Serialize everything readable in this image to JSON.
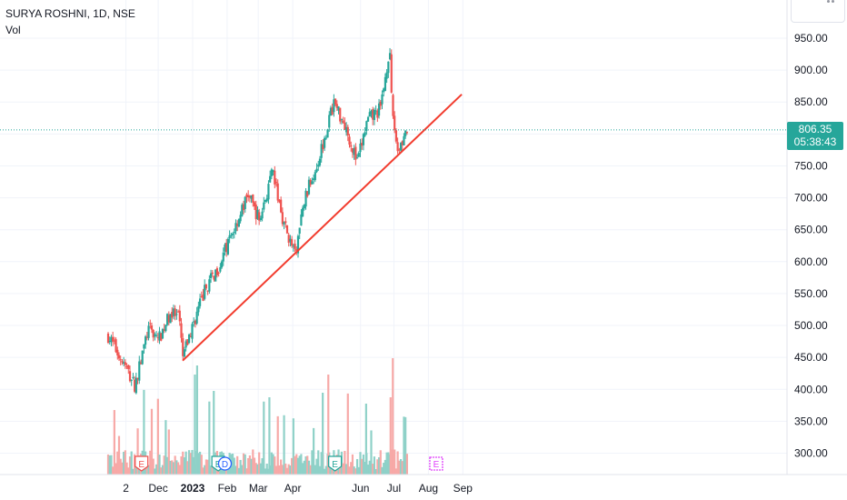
{
  "header": {
    "symbol": "SURYA ROSHNI, 1D, NSE",
    "indicator": "Vol"
  },
  "last_price": {
    "value": "806.35",
    "countdown": "05:38:43",
    "color": "#26a69a"
  },
  "colors": {
    "up": "#26a69a",
    "down": "#ef5350",
    "up_vol": "#8fd1c8",
    "down_vol": "#f7a9a7",
    "trendline": "#f23c2e",
    "grid": "#f0f3fa"
  },
  "chart_data": {
    "type": "candlestick",
    "y_axis": {
      "ticks": [
        950,
        900,
        850,
        800,
        750,
        700,
        650,
        600,
        550,
        500,
        450,
        400,
        350,
        300
      ],
      "labels": [
        "950.00",
        "900.00",
        "850.00",
        "800.00",
        "750.00",
        "700.00",
        "650.00",
        "600.00",
        "550.00",
        "500.00",
        "450.00",
        "400.00",
        "350.00",
        "300.00"
      ]
    },
    "x_axis": {
      "labels": [
        "2",
        "Dec",
        "2023",
        "Feb",
        "Mar",
        "Apr",
        "Jun",
        "Jul",
        "Aug",
        "Sep"
      ],
      "bold": [
        false,
        false,
        true,
        false,
        false,
        false,
        false,
        false,
        false,
        false
      ]
    },
    "trendline": {
      "from": {
        "date": "2022-12-23",
        "price": 445
      },
      "to": {
        "date": "2023-08-31",
        "price": 862
      }
    },
    "price_path": [
      [
        "2022-10-17",
        484
      ],
      [
        "2022-10-31",
        440
      ],
      [
        "2022-11-10",
        405
      ],
      [
        "2022-11-22",
        495
      ],
      [
        "2022-12-02",
        480
      ],
      [
        "2022-12-12",
        520
      ],
      [
        "2022-12-20",
        510
      ],
      [
        "2022-12-23",
        450
      ],
      [
        "2023-01-03",
        510
      ],
      [
        "2023-01-12",
        555
      ],
      [
        "2023-01-25",
        595
      ],
      [
        "2023-02-08",
        655
      ],
      [
        "2023-02-20",
        705
      ],
      [
        "2023-03-02",
        665
      ],
      [
        "2023-03-14",
        740
      ],
      [
        "2023-03-24",
        660
      ],
      [
        "2023-04-03",
        610
      ],
      [
        "2023-04-12",
        700
      ],
      [
        "2023-04-24",
        760
      ],
      [
        "2023-05-08",
        850
      ],
      [
        "2023-05-18",
        815
      ],
      [
        "2023-05-29",
        755
      ],
      [
        "2023-06-07",
        820
      ],
      [
        "2023-06-19",
        840
      ],
      [
        "2023-06-27",
        935
      ],
      [
        "2023-06-29",
        845
      ],
      [
        "2023-07-04",
        775
      ],
      [
        "2023-07-13",
        806
      ]
    ],
    "markers": [
      {
        "label": "E",
        "date": "2022-11-16",
        "color": "#ef5350",
        "type": "earnings"
      },
      {
        "label": "E",
        "date": "2023-01-24",
        "color": "#26a69a",
        "type": "earnings"
      },
      {
        "label": "D",
        "date": "2023-01-30",
        "color": "#2962ff",
        "type": "dividend"
      },
      {
        "label": "E",
        "date": "2023-05-09",
        "color": "#26a69a",
        "type": "earnings"
      },
      {
        "label": "E",
        "date": "2023-08-08",
        "color": "#e040fb",
        "type": "earnings-upcoming"
      }
    ]
  }
}
